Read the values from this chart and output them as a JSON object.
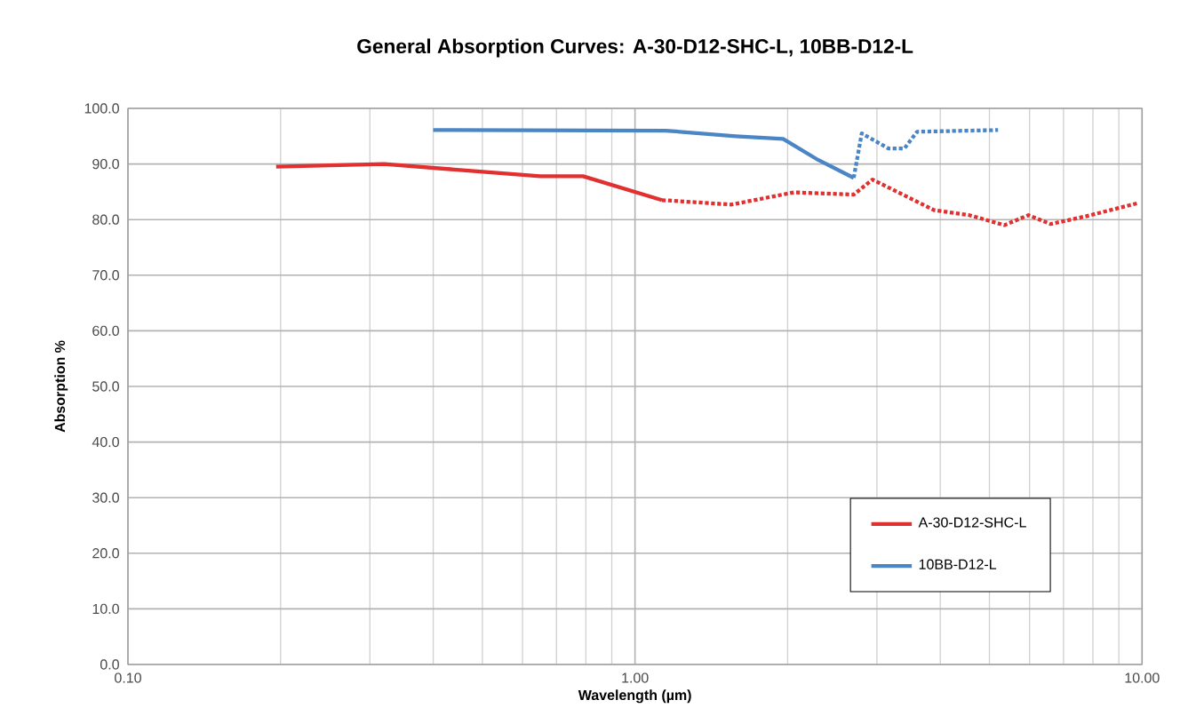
{
  "chart_data": {
    "type": "line",
    "title": "General Absorption Curves:  A-30-D12-SHC-L,   10BB-D12-L",
    "xlabel": "Wavelength (µm)",
    "ylabel": "Absorption %",
    "log": "x",
    "xlim": [
      0.1,
      10
    ],
    "ylim": [
      0,
      100
    ],
    "xticks": [
      {
        "value": 0.1,
        "label": "0.10"
      },
      {
        "value": 1,
        "label": "1.00"
      },
      {
        "value": 10,
        "label": "10.00"
      }
    ],
    "yticks": [
      {
        "value": 0,
        "label": "0.0"
      },
      {
        "value": 10,
        "label": "10.0"
      },
      {
        "value": 20,
        "label": "20.0"
      },
      {
        "value": 30,
        "label": "30.0"
      },
      {
        "value": 40,
        "label": "40.0"
      },
      {
        "value": 50,
        "label": "50.0"
      },
      {
        "value": 60,
        "label": "60.0"
      },
      {
        "value": 70,
        "label": "70.0"
      },
      {
        "value": 80,
        "label": "80.0"
      },
      {
        "value": 90,
        "label": "90.0"
      },
      {
        "value": 100,
        "label": "100.0"
      }
    ],
    "grid": true,
    "legend": "bottom right",
    "marker": "none",
    "series": [
      {
        "name": "A-30-D12-SHC-L",
        "color": "#e03030",
        "line_style": "solid",
        "x": [
          0.196,
          0.32,
          0.44,
          0.65,
          0.79,
          1.13
        ],
        "values": [
          89.5,
          90,
          89,
          87.8,
          87.8,
          83.5
        ]
      },
      {
        "name": "10BB-D12-L",
        "color": "#4a86c5",
        "line_style": "solid",
        "x": [
          0.4,
          1.15,
          1.58,
          1.96,
          2.3,
          2.7
        ],
        "values": [
          96.1,
          96,
          95,
          94.5,
          90.7,
          87.5
        ]
      },
      {
        "color": "#e03030",
        "line_style": "dotted",
        "x": [
          1.13,
          1.55,
          2.06,
          2.7,
          2.94,
          3.89,
          4.56,
          5.35,
          5.97,
          6.6,
          7.76,
          9.85
        ],
        "values": [
          83.5,
          82.7,
          84.9,
          84.5,
          87.2,
          81.7,
          80.8,
          79,
          80.8,
          79.2,
          80.6,
          83
        ]
      },
      {
        "color": "#4a86c5",
        "line_style": "dotted",
        "x": [
          2.7,
          2.8,
          3.16,
          3.4,
          3.6,
          5.2
        ],
        "values": [
          87.5,
          95.5,
          92.8,
          92.8,
          95.8,
          96.1
        ]
      }
    ]
  }
}
